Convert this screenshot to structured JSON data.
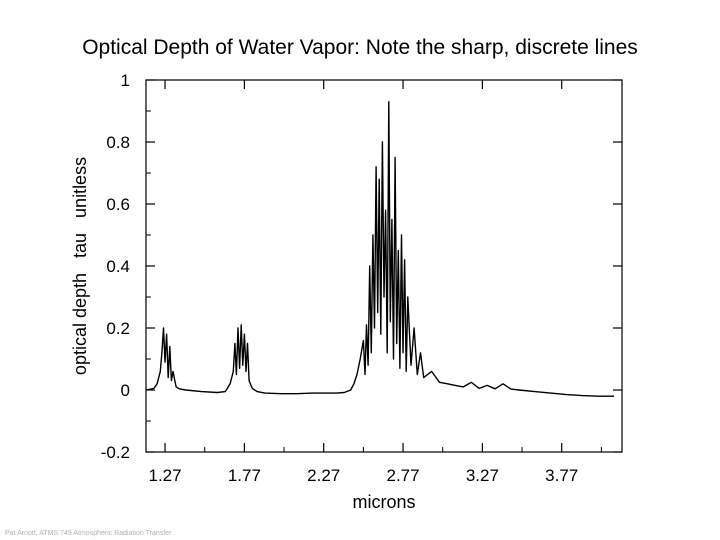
{
  "slide_title": "Optical Depth of Water Vapor: Note the sharp, discrete lines",
  "footer": "Pat Arnott, ATMS 749 Atmospheric Radiation Transfer",
  "chart_data": {
    "type": "line",
    "title": "",
    "xlabel": "microns",
    "ylabel": "optical depth   tau   unitless",
    "xlim": [
      1.15,
      4.15
    ],
    "ylim": [
      -0.2,
      1.0
    ],
    "x_ticks": [
      1.27,
      1.77,
      2.27,
      2.77,
      3.27,
      3.77
    ],
    "x_tick_labels": [
      "1.27",
      "1.77",
      "2.27",
      "2.77",
      "3.27",
      "3.77"
    ],
    "y_ticks": [
      -0.2,
      0,
      0.2,
      0.4,
      0.6,
      0.8,
      1.0
    ],
    "y_tick_labels": [
      "-0.2",
      "0",
      "0.2",
      "0.4",
      "0.6",
      "0.8",
      "1"
    ],
    "grid": false,
    "series": [
      {
        "color": "#000000",
        "x": [
          1.15,
          1.2,
          1.22,
          1.24,
          1.25,
          1.26,
          1.27,
          1.28,
          1.29,
          1.3,
          1.31,
          1.32,
          1.34,
          1.36,
          1.4,
          1.5,
          1.6,
          1.65,
          1.68,
          1.7,
          1.71,
          1.72,
          1.73,
          1.74,
          1.75,
          1.76,
          1.77,
          1.78,
          1.79,
          1.8,
          1.82,
          1.85,
          1.9,
          2.0,
          2.1,
          2.2,
          2.27,
          2.35,
          2.4,
          2.44,
          2.46,
          2.48,
          2.5,
          2.52,
          2.53,
          2.54,
          2.55,
          2.56,
          2.57,
          2.58,
          2.59,
          2.6,
          2.61,
          2.62,
          2.63,
          2.64,
          2.65,
          2.66,
          2.67,
          2.68,
          2.69,
          2.7,
          2.71,
          2.72,
          2.73,
          2.74,
          2.75,
          2.76,
          2.77,
          2.78,
          2.79,
          2.8,
          2.82,
          2.84,
          2.86,
          2.88,
          2.9,
          2.95,
          3.0,
          3.05,
          3.1,
          3.15,
          3.2,
          3.25,
          3.3,
          3.35,
          3.4,
          3.45,
          3.5,
          3.6,
          3.7,
          3.8,
          3.9,
          4.0,
          4.1
        ],
        "y": [
          0.0,
          0.005,
          0.02,
          0.06,
          0.12,
          0.2,
          0.09,
          0.18,
          0.04,
          0.14,
          0.03,
          0.06,
          0.01,
          0.004,
          0.0,
          -0.005,
          -0.008,
          -0.005,
          0.02,
          0.06,
          0.15,
          0.05,
          0.2,
          0.07,
          0.21,
          0.08,
          0.18,
          0.06,
          0.15,
          0.03,
          0.005,
          -0.005,
          -0.01,
          -0.012,
          -0.012,
          -0.01,
          -0.01,
          -0.01,
          -0.008,
          0.0,
          0.02,
          0.05,
          0.1,
          0.16,
          0.05,
          0.21,
          0.08,
          0.4,
          0.12,
          0.5,
          0.2,
          0.72,
          0.25,
          0.68,
          0.18,
          0.8,
          0.3,
          0.58,
          0.12,
          0.93,
          0.22,
          0.55,
          0.1,
          0.75,
          0.15,
          0.45,
          0.07,
          0.5,
          0.12,
          0.42,
          0.06,
          0.3,
          0.08,
          0.2,
          0.05,
          0.12,
          0.04,
          0.06,
          0.025,
          0.02,
          0.015,
          0.01,
          0.025,
          0.005,
          0.015,
          0.004,
          0.02,
          0.003,
          0.0,
          -0.005,
          -0.01,
          -0.015,
          -0.018,
          -0.02,
          -0.02
        ]
      }
    ]
  }
}
